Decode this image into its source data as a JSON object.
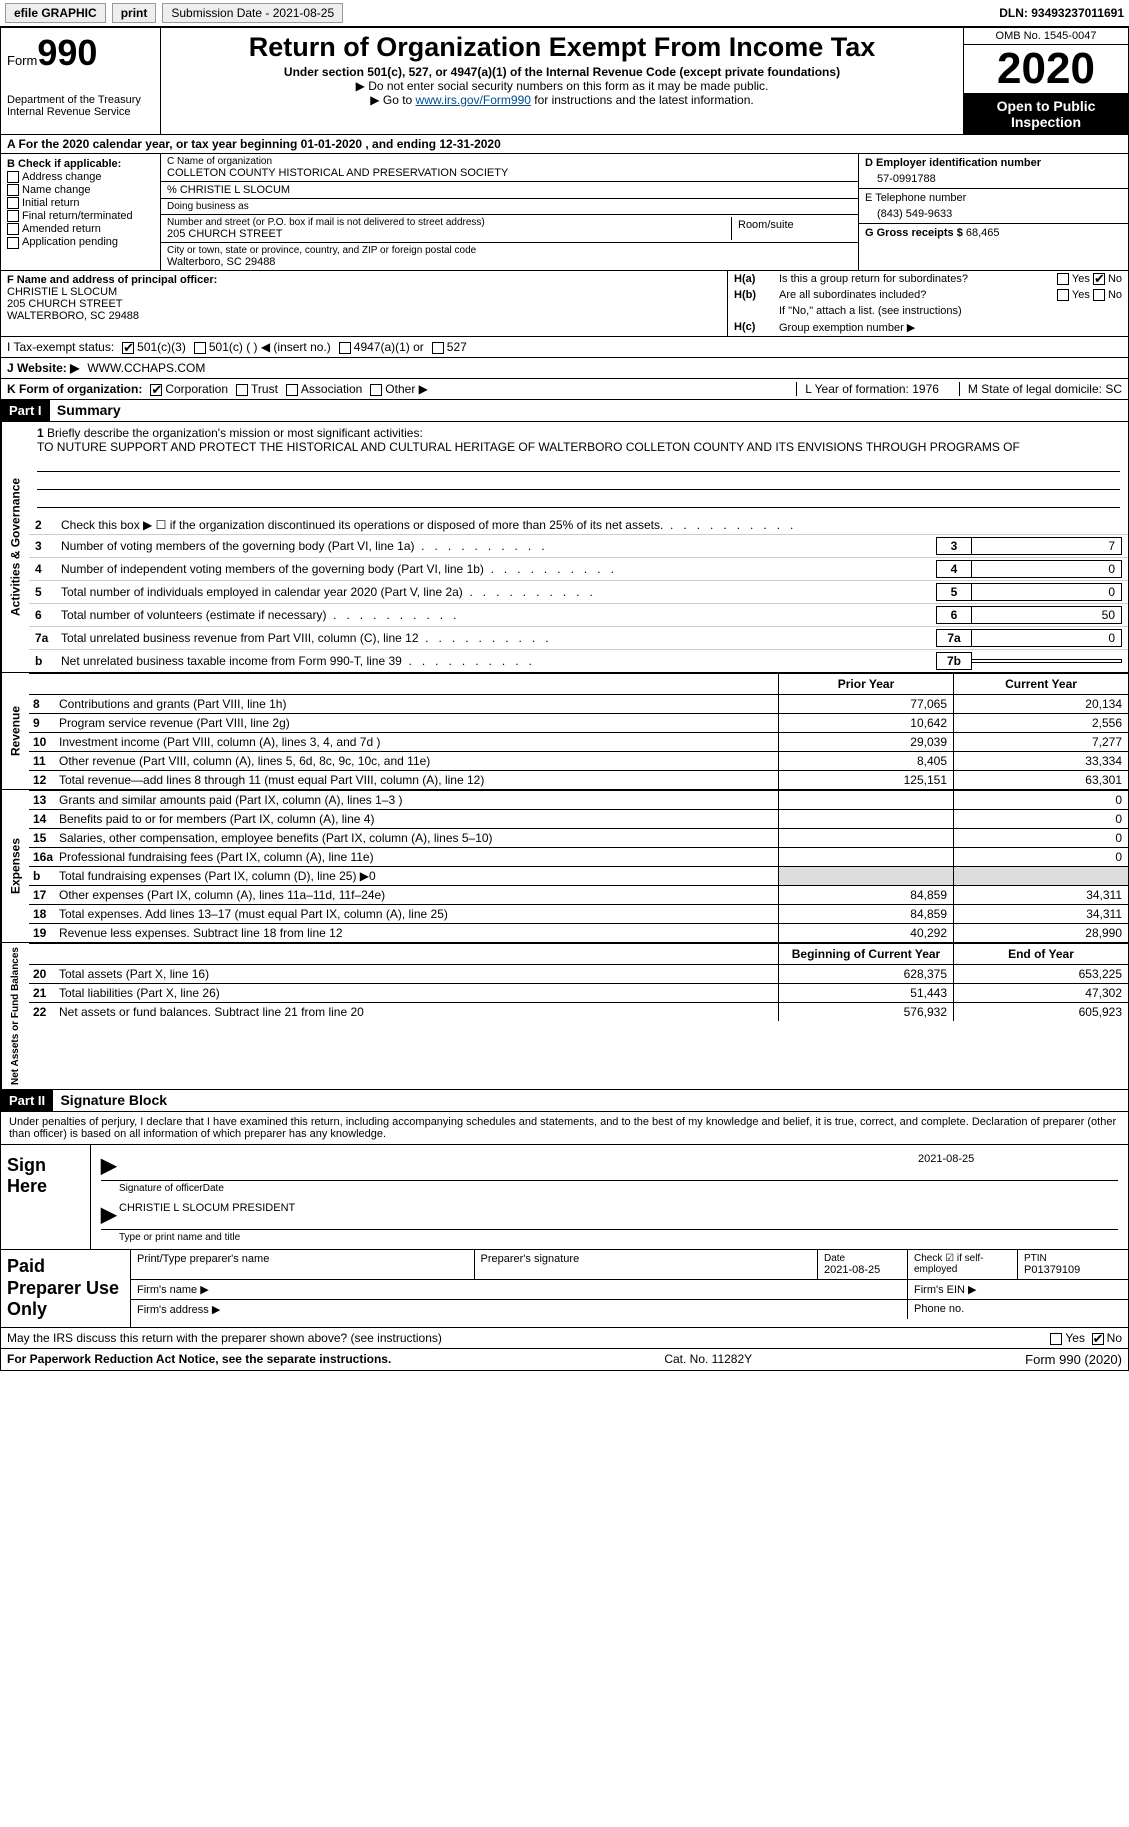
{
  "topbar": {
    "efile": "efile GRAPHIC",
    "print": "print",
    "submission_label": "Submission Date - 2021-08-25",
    "dln": "DLN: 93493237011691"
  },
  "header": {
    "form_word": "Form",
    "form_num": "990",
    "dept1": "Department of the Treasury",
    "dept2": "Internal Revenue Service",
    "title": "Return of Organization Exempt From Income Tax",
    "subtitle": "Under section 501(c), 527, or 4947(a)(1) of the Internal Revenue Code (except private foundations)",
    "note1": "▶ Do not enter social security numbers on this form as it may be made public.",
    "note2_pre": "▶ Go to ",
    "note2_link": "www.irs.gov/Form990",
    "note2_post": " for instructions and the latest information.",
    "omb": "OMB No. 1545-0047",
    "year": "2020",
    "open": "Open to Public Inspection"
  },
  "period": "A For the 2020 calendar year, or tax year beginning 01-01-2020    , and ending 12-31-2020",
  "boxB": {
    "label": "B Check if applicable:",
    "items": [
      "Address change",
      "Name change",
      "Initial return",
      "Final return/terminated",
      "Amended return",
      "Application pending"
    ]
  },
  "boxC": {
    "name_label": "C Name of organization",
    "name": "COLLETON COUNTY HISTORICAL AND PRESERVATION SOCIETY",
    "care_of": "% CHRISTIE L SLOCUM",
    "dba_label": "Doing business as",
    "addr_label": "Number and street (or P.O. box if mail is not delivered to street address)",
    "addr": "205 CHURCH STREET",
    "room_label": "Room/suite",
    "city_label": "City or town, state or province, country, and ZIP or foreign postal code",
    "city": "Walterboro, SC  29488"
  },
  "boxD": {
    "label": "D Employer identification number",
    "value": "57-0991788"
  },
  "boxE": {
    "label": "E Telephone number",
    "value": "(843) 549-9633"
  },
  "boxG": {
    "label": "G Gross receipts $",
    "value": "68,465"
  },
  "boxF": {
    "label": "F  Name and address of principal officer:",
    "name": "CHRISTIE L SLOCUM",
    "addr1": "205 CHURCH STREET",
    "addr2": "WALTERBORO, SC  29488"
  },
  "boxH": {
    "a_label": "H(a)",
    "a_text": "Is this a group return for subordinates?",
    "a_yes": "Yes",
    "a_no": "No",
    "b_label": "H(b)",
    "b_text": "Are all subordinates included?",
    "b_yes": "Yes",
    "b_no": "No",
    "b_note": "If \"No,\" attach a list. (see instructions)",
    "c_label": "H(c)",
    "c_text": "Group exemption number ▶"
  },
  "rowI": {
    "label": "I   Tax-exempt status:",
    "o1": "501(c)(3)",
    "o2": "501(c) (  ) ◀ (insert no.)",
    "o3": "4947(a)(1) or",
    "o4": "527"
  },
  "rowJ": {
    "label": "J  Website: ▶",
    "value": "WWW.CCHAPS.COM"
  },
  "rowK": {
    "label": "K Form of organization:",
    "o1": "Corporation",
    "o2": "Trust",
    "o3": "Association",
    "o4": "Other ▶",
    "L": "L Year of formation: 1976",
    "M": "M State of legal domicile: SC"
  },
  "part1": {
    "label": "Part I",
    "title": "Summary"
  },
  "mission": {
    "num": "1",
    "label": "Briefly describe the organization's mission or most significant activities:",
    "text": "TO NUTURE SUPPORT AND PROTECT THE HISTORICAL AND CULTURAL HERITAGE OF WALTERBORO COLLETON COUNTY AND ITS ENVISIONS THROUGH PROGRAMS OF"
  },
  "gov_tab": "Activities & Governance",
  "rev_tab": "Revenue",
  "exp_tab": "Expenses",
  "net_tab": "Net Assets or Fund Balances",
  "lines_small": [
    {
      "n": "2",
      "t": "Check this box ▶ ☐  if the organization discontinued its operations or disposed of more than 25% of its net assets.",
      "k": "",
      "v": ""
    },
    {
      "n": "3",
      "t": "Number of voting members of the governing body (Part VI, line 1a)",
      "k": "3",
      "v": "7"
    },
    {
      "n": "4",
      "t": "Number of independent voting members of the governing body (Part VI, line 1b)",
      "k": "4",
      "v": "0"
    },
    {
      "n": "5",
      "t": "Total number of individuals employed in calendar year 2020 (Part V, line 2a)",
      "k": "5",
      "v": "0"
    },
    {
      "n": "6",
      "t": "Total number of volunteers (estimate if necessary)",
      "k": "6",
      "v": "50"
    },
    {
      "n": "7a",
      "t": "Total unrelated business revenue from Part VIII, column (C), line 12",
      "k": "7a",
      "v": "0"
    },
    {
      "n": "b",
      "t": "Net unrelated business taxable income from Form 990-T, line 39",
      "k": "7b",
      "v": ""
    }
  ],
  "col_hdr": {
    "prior": "Prior Year",
    "current": "Current Year"
  },
  "rev_rows": [
    {
      "n": "8",
      "t": "Contributions and grants (Part VIII, line 1h)",
      "p": "77,065",
      "c": "20,134"
    },
    {
      "n": "9",
      "t": "Program service revenue (Part VIII, line 2g)",
      "p": "10,642",
      "c": "2,556"
    },
    {
      "n": "10",
      "t": "Investment income (Part VIII, column (A), lines 3, 4, and 7d )",
      "p": "29,039",
      "c": "7,277"
    },
    {
      "n": "11",
      "t": "Other revenue (Part VIII, column (A), lines 5, 6d, 8c, 9c, 10c, and 11e)",
      "p": "8,405",
      "c": "33,334"
    },
    {
      "n": "12",
      "t": "Total revenue—add lines 8 through 11 (must equal Part VIII, column (A), line 12)",
      "p": "125,151",
      "c": "63,301"
    }
  ],
  "exp_rows": [
    {
      "n": "13",
      "t": "Grants and similar amounts paid (Part IX, column (A), lines 1–3 )",
      "p": "",
      "c": "0"
    },
    {
      "n": "14",
      "t": "Benefits paid to or for members (Part IX, column (A), line 4)",
      "p": "",
      "c": "0"
    },
    {
      "n": "15",
      "t": "Salaries, other compensation, employee benefits (Part IX, column (A), lines 5–10)",
      "p": "",
      "c": "0"
    },
    {
      "n": "16a",
      "t": "Professional fundraising fees (Part IX, column (A), line 11e)",
      "p": "",
      "c": "0"
    },
    {
      "n": "b",
      "t": "Total fundraising expenses (Part IX, column (D), line 25) ▶0",
      "p": "shade",
      "c": "shade"
    },
    {
      "n": "17",
      "t": "Other expenses (Part IX, column (A), lines 11a–11d, 11f–24e)",
      "p": "84,859",
      "c": "34,311"
    },
    {
      "n": "18",
      "t": "Total expenses. Add lines 13–17 (must equal Part IX, column (A), line 25)",
      "p": "84,859",
      "c": "34,311"
    },
    {
      "n": "19",
      "t": "Revenue less expenses. Subtract line 18 from line 12",
      "p": "40,292",
      "c": "28,990"
    }
  ],
  "net_hdr": {
    "begin": "Beginning of Current Year",
    "end": "End of Year"
  },
  "net_rows": [
    {
      "n": "20",
      "t": "Total assets (Part X, line 16)",
      "p": "628,375",
      "c": "653,225"
    },
    {
      "n": "21",
      "t": "Total liabilities (Part X, line 26)",
      "p": "51,443",
      "c": "47,302"
    },
    {
      "n": "22",
      "t": "Net assets or fund balances. Subtract line 21 from line 20",
      "p": "576,932",
      "c": "605,923"
    }
  ],
  "part2": {
    "label": "Part II",
    "title": "Signature Block"
  },
  "sig_text": "Under penalties of perjury, I declare that I have examined this return, including accompanying schedules and statements, and to the best of my knowledge and belief, it is true, correct, and complete. Declaration of preparer (other than officer) is based on all information of which preparer has any knowledge.",
  "sign": {
    "here": "Sign Here",
    "sig_label": "Signature of officer",
    "date_label": "Date",
    "date": "2021-08-25",
    "name": "CHRISTIE L SLOCUM  PRESIDENT",
    "name_label": "Type or print name and title"
  },
  "paid": {
    "title": "Paid Preparer Use Only",
    "h1": "Print/Type preparer's name",
    "h2": "Preparer's signature",
    "h3_label": "Date",
    "h3": "2021-08-25",
    "h4_label": "Check ☑ if self-employed",
    "h5_label": "PTIN",
    "h5": "P01379109",
    "firm_name": "Firm's name   ▶",
    "firm_ein": "Firm's EIN ▶",
    "firm_addr": "Firm's address ▶",
    "phone": "Phone no."
  },
  "discuss": {
    "text": "May the IRS discuss this return with the preparer shown above? (see instructions)",
    "yes": "Yes",
    "no": "No"
  },
  "footer": {
    "left": "For Paperwork Reduction Act Notice, see the separate instructions.",
    "mid": "Cat. No. 11282Y",
    "right": "Form 990 (2020)"
  }
}
